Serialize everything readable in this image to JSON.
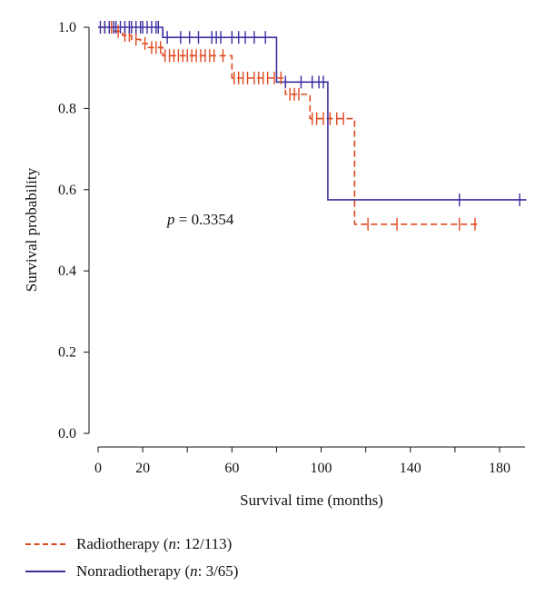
{
  "chart_data": {
    "type": "line",
    "subtype": "kaplan-meier step",
    "xlabel": "Survival time (months)",
    "ylabel": "Survival probability",
    "xlim": [
      -5,
      195
    ],
    "ylim": [
      0,
      1.0
    ],
    "xticks": [
      0,
      20,
      60,
      100,
      140,
      180
    ],
    "yticks": [
      0.0,
      0.2,
      0.4,
      0.6,
      0.8,
      1.0
    ],
    "ytick_labels": [
      "0.0",
      "0.2",
      "0.4",
      "0.6",
      "0.8",
      "1.0"
    ],
    "annotation": {
      "prefix": "p",
      "text": " = 0.3354"
    },
    "grid": false,
    "legend_position": "bottom-left, below axes",
    "series": [
      {
        "name_main": "Radiotherapy",
        "name_n": "n",
        "name_rest": ": 12/113)",
        "color": "#e0481f",
        "dash": "dashed",
        "steps": [
          [
            0,
            1.0
          ],
          [
            7,
            0.99
          ],
          [
            11,
            0.98
          ],
          [
            15,
            0.97
          ],
          [
            19,
            0.96
          ],
          [
            22,
            0.95
          ],
          [
            29,
            0.93
          ],
          [
            60,
            0.875
          ],
          [
            84,
            0.835
          ],
          [
            95,
            0.775
          ],
          [
            115,
            0.515
          ],
          [
            170,
            0.515
          ]
        ],
        "censors": [
          3,
          6,
          9,
          12,
          14,
          17,
          21,
          24,
          26,
          28,
          30,
          32,
          34,
          36,
          38,
          40,
          42,
          44,
          46,
          48,
          50,
          52,
          56,
          61,
          63,
          65,
          67,
          70,
          72,
          74,
          76,
          79,
          82,
          86,
          88,
          90,
          96,
          98,
          101,
          104,
          107,
          110,
          121,
          134,
          162,
          169
        ]
      },
      {
        "name_main": "Nonradiotherapy",
        "name_n": "n",
        "name_rest": ": 3/65)",
        "color": "#3b2fa0",
        "dash": "solid",
        "steps": [
          [
            0,
            1.0
          ],
          [
            29,
            0.975
          ],
          [
            80,
            0.865
          ],
          [
            103,
            0.575
          ],
          [
            192,
            0.575
          ]
        ],
        "censors": [
          1,
          3,
          5,
          7,
          8,
          10,
          12,
          14,
          15,
          17,
          19,
          20,
          22,
          24,
          26,
          27,
          31,
          37,
          41,
          45,
          51,
          53,
          55,
          60,
          63,
          66,
          70,
          75,
          84,
          91,
          96,
          99,
          101,
          162,
          189
        ]
      }
    ]
  }
}
